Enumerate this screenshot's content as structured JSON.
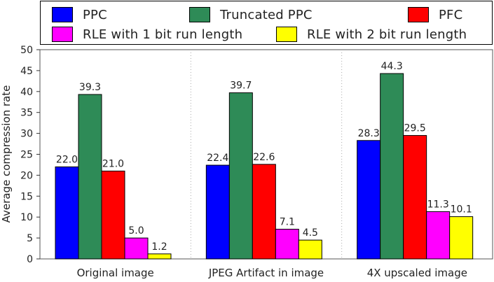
{
  "chart_data": {
    "type": "bar",
    "categories": [
      "Original image",
      "JPEG Artifact in image",
      "4X upscaled image"
    ],
    "series": [
      {
        "name": "PPC",
        "color": "#0000ff",
        "values": [
          22.0,
          22.4,
          28.3
        ]
      },
      {
        "name": "Truncated PPC",
        "color": "#2e8b57",
        "values": [
          39.3,
          39.7,
          44.3
        ]
      },
      {
        "name": "PFC",
        "color": "#ff0000",
        "values": [
          21.0,
          22.6,
          29.5
        ]
      },
      {
        "name": "RLE with 1 bit run length",
        "color": "#ff00ff",
        "values": [
          5.0,
          7.1,
          11.3
        ]
      },
      {
        "name": "RLE with 2 bit run length",
        "color": "#ffff00",
        "values": [
          1.2,
          4.5,
          10.1
        ]
      }
    ],
    "value_labels": [
      [
        "22.0",
        "22.4",
        "28.3"
      ],
      [
        "39.3",
        "39.7",
        "44.3"
      ],
      [
        "21.0",
        "22.6",
        "29.5"
      ],
      [
        "5.0",
        "7.1",
        "11.3"
      ],
      [
        "1.2",
        "4.5",
        "10.1"
      ]
    ],
    "ylabel": "Average compression rate",
    "xlabel": "",
    "ylim": [
      0,
      50
    ],
    "yticks": [
      "0",
      "5",
      "10",
      "15",
      "20",
      "25",
      "30",
      "35",
      "40",
      "45",
      "50"
    ],
    "grid": "dotted vertical separators between groups",
    "legend_position": "top"
  }
}
